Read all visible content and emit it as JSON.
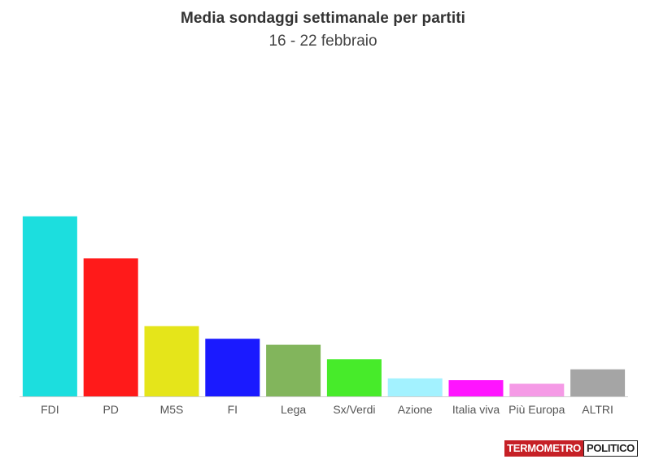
{
  "title": "Media sondaggi settimanale per partiti",
  "subtitle": "16 - 22 febbraio",
  "logo": {
    "part1": "TERMOMETRO",
    "part2": "POLITICO"
  },
  "chart_data": {
    "type": "bar",
    "title": "Media sondaggi settimanale per partiti",
    "subtitle": "16 - 22 febbraio",
    "categories": [
      "FDI",
      "PD",
      "M5S",
      "FI",
      "Lega",
      "Sx/Verdi",
      "Azione",
      "Italia viva",
      "Più Europa",
      "ALTRI"
    ],
    "values": [
      30.0,
      23.0,
      11.7,
      9.6,
      8.6,
      6.2,
      3.0,
      2.7,
      2.1,
      4.5
    ],
    "colors": [
      "#1cdede",
      "#ff1a1a",
      "#e5e51a",
      "#1a1aff",
      "#82b55c",
      "#47eb2a",
      "#a3f2ff",
      "#ff14ff",
      "#f59ae6",
      "#a5a5a5"
    ],
    "ylim": [
      0,
      40
    ],
    "grid": false,
    "legend": "none",
    "xlabel": "",
    "ylabel": ""
  }
}
